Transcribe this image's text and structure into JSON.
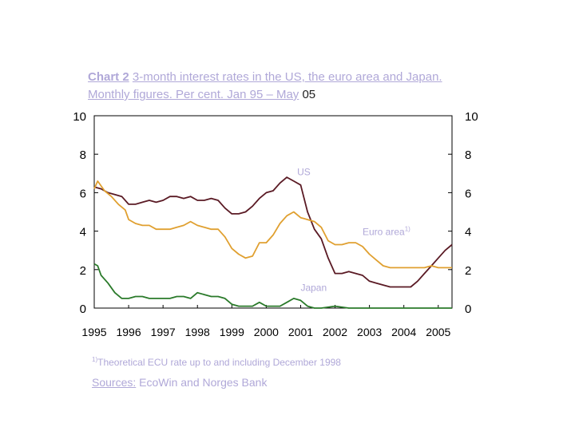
{
  "title": {
    "number": "Chart 2",
    "text_a": "3-month interest rates in the US, the euro area and Japan. Monthly figures. Per cent. Jan 95 – May",
    "text_b": " 05"
  },
  "footnote": {
    "marker": "1)",
    "text": "Theoretical ECU rate up to and including December 1998"
  },
  "sources": {
    "label": "Sources:",
    "text": " EcoWin and Norges Bank"
  },
  "colors": {
    "us": "#5a1a24",
    "euro": "#e0a030",
    "japan": "#2a7a2a",
    "label": "#b0a8d8",
    "axis": "#000000"
  },
  "chart_data": {
    "type": "line",
    "ylim": [
      0,
      10
    ],
    "xlim": [
      1995.0,
      2005.4
    ],
    "y_ticks": [
      "0",
      "2",
      "4",
      "6",
      "8",
      "10"
    ],
    "x_ticks": [
      "1995",
      "1996",
      "1997",
      "1998",
      "1999",
      "2000",
      "2001",
      "2002",
      "2003",
      "2004",
      "2005"
    ],
    "right_axis": true,
    "series": [
      {
        "name": "US",
        "color_key": "us",
        "points": [
          [
            1995.0,
            6.3
          ],
          [
            1995.2,
            6.2
          ],
          [
            1995.4,
            6.0
          ],
          [
            1995.6,
            5.9
          ],
          [
            1995.8,
            5.8
          ],
          [
            1996.0,
            5.4
          ],
          [
            1996.2,
            5.4
          ],
          [
            1996.4,
            5.5
          ],
          [
            1996.6,
            5.6
          ],
          [
            1996.8,
            5.5
          ],
          [
            1997.0,
            5.6
          ],
          [
            1997.2,
            5.8
          ],
          [
            1997.4,
            5.8
          ],
          [
            1997.6,
            5.7
          ],
          [
            1997.8,
            5.8
          ],
          [
            1998.0,
            5.6
          ],
          [
            1998.2,
            5.6
          ],
          [
            1998.4,
            5.7
          ],
          [
            1998.6,
            5.6
          ],
          [
            1998.8,
            5.2
          ],
          [
            1999.0,
            4.9
          ],
          [
            1999.2,
            4.9
          ],
          [
            1999.4,
            5.0
          ],
          [
            1999.6,
            5.3
          ],
          [
            1999.8,
            5.7
          ],
          [
            2000.0,
            6.0
          ],
          [
            2000.2,
            6.1
          ],
          [
            2000.4,
            6.5
          ],
          [
            2000.6,
            6.8
          ],
          [
            2000.8,
            6.6
          ],
          [
            2001.0,
            6.4
          ],
          [
            2001.2,
            5.0
          ],
          [
            2001.4,
            4.1
          ],
          [
            2001.6,
            3.6
          ],
          [
            2001.8,
            2.6
          ],
          [
            2002.0,
            1.8
          ],
          [
            2002.2,
            1.8
          ],
          [
            2002.4,
            1.9
          ],
          [
            2002.6,
            1.8
          ],
          [
            2002.8,
            1.7
          ],
          [
            2003.0,
            1.4
          ],
          [
            2003.2,
            1.3
          ],
          [
            2003.4,
            1.2
          ],
          [
            2003.6,
            1.1
          ],
          [
            2003.8,
            1.1
          ],
          [
            2004.0,
            1.1
          ],
          [
            2004.2,
            1.1
          ],
          [
            2004.4,
            1.4
          ],
          [
            2004.6,
            1.8
          ],
          [
            2004.8,
            2.2
          ],
          [
            2005.0,
            2.6
          ],
          [
            2005.2,
            3.0
          ],
          [
            2005.4,
            3.3
          ]
        ]
      },
      {
        "name": "Euro area",
        "name_note": "1)",
        "color_key": "euro",
        "points": [
          [
            1995.0,
            6.2
          ],
          [
            1995.1,
            6.6
          ],
          [
            1995.3,
            6.1
          ],
          [
            1995.5,
            5.8
          ],
          [
            1995.7,
            5.4
          ],
          [
            1995.9,
            5.1
          ],
          [
            1996.0,
            4.6
          ],
          [
            1996.2,
            4.4
          ],
          [
            1996.4,
            4.3
          ],
          [
            1996.6,
            4.3
          ],
          [
            1996.8,
            4.1
          ],
          [
            1997.0,
            4.1
          ],
          [
            1997.2,
            4.1
          ],
          [
            1997.4,
            4.2
          ],
          [
            1997.6,
            4.3
          ],
          [
            1997.8,
            4.5
          ],
          [
            1998.0,
            4.3
          ],
          [
            1998.2,
            4.2
          ],
          [
            1998.4,
            4.1
          ],
          [
            1998.6,
            4.1
          ],
          [
            1998.8,
            3.7
          ],
          [
            1999.0,
            3.1
          ],
          [
            1999.2,
            2.8
          ],
          [
            1999.4,
            2.6
          ],
          [
            1999.6,
            2.7
          ],
          [
            1999.8,
            3.4
          ],
          [
            2000.0,
            3.4
          ],
          [
            2000.2,
            3.8
          ],
          [
            2000.4,
            4.4
          ],
          [
            2000.6,
            4.8
          ],
          [
            2000.8,
            5.0
          ],
          [
            2001.0,
            4.7
          ],
          [
            2001.2,
            4.6
          ],
          [
            2001.4,
            4.5
          ],
          [
            2001.6,
            4.2
          ],
          [
            2001.8,
            3.5
          ],
          [
            2002.0,
            3.3
          ],
          [
            2002.2,
            3.3
          ],
          [
            2002.4,
            3.4
          ],
          [
            2002.6,
            3.4
          ],
          [
            2002.8,
            3.2
          ],
          [
            2003.0,
            2.8
          ],
          [
            2003.2,
            2.5
          ],
          [
            2003.4,
            2.2
          ],
          [
            2003.6,
            2.1
          ],
          [
            2003.8,
            2.1
          ],
          [
            2004.0,
            2.1
          ],
          [
            2004.2,
            2.1
          ],
          [
            2004.4,
            2.1
          ],
          [
            2004.6,
            2.1
          ],
          [
            2004.8,
            2.2
          ],
          [
            2005.0,
            2.1
          ],
          [
            2005.2,
            2.1
          ],
          [
            2005.4,
            2.1
          ]
        ]
      },
      {
        "name": "Japan",
        "color_key": "japan",
        "points": [
          [
            1995.0,
            2.3
          ],
          [
            1995.1,
            2.2
          ],
          [
            1995.2,
            1.7
          ],
          [
            1995.4,
            1.3
          ],
          [
            1995.6,
            0.8
          ],
          [
            1995.8,
            0.5
          ],
          [
            1996.0,
            0.5
          ],
          [
            1996.2,
            0.6
          ],
          [
            1996.4,
            0.6
          ],
          [
            1996.6,
            0.5
          ],
          [
            1996.8,
            0.5
          ],
          [
            1997.0,
            0.5
          ],
          [
            1997.2,
            0.5
          ],
          [
            1997.4,
            0.6
          ],
          [
            1997.6,
            0.6
          ],
          [
            1997.8,
            0.5
          ],
          [
            1998.0,
            0.8
          ],
          [
            1998.2,
            0.7
          ],
          [
            1998.4,
            0.6
          ],
          [
            1998.6,
            0.6
          ],
          [
            1998.8,
            0.5
          ],
          [
            1999.0,
            0.2
          ],
          [
            1999.2,
            0.1
          ],
          [
            1999.4,
            0.1
          ],
          [
            1999.6,
            0.1
          ],
          [
            1999.8,
            0.3
          ],
          [
            2000.0,
            0.1
          ],
          [
            2000.2,
            0.1
          ],
          [
            2000.4,
            0.1
          ],
          [
            2000.6,
            0.3
          ],
          [
            2000.8,
            0.5
          ],
          [
            2001.0,
            0.4
          ],
          [
            2001.2,
            0.1
          ],
          [
            2001.4,
            0.0
          ],
          [
            2001.6,
            0.0
          ],
          [
            2002.0,
            0.1
          ],
          [
            2002.4,
            0.0
          ],
          [
            2003.0,
            0.0
          ],
          [
            2004.0,
            0.0
          ],
          [
            2005.0,
            0.0
          ],
          [
            2005.4,
            0.0
          ]
        ]
      }
    ],
    "labels": [
      {
        "text": "US",
        "x": 2000.9,
        "y": 6.9
      },
      {
        "text": "Euro area",
        "sup": "1)",
        "x": 2002.8,
        "y": 3.8
      },
      {
        "text": "Japan",
        "x": 2001.0,
        "y": 0.9
      }
    ]
  }
}
